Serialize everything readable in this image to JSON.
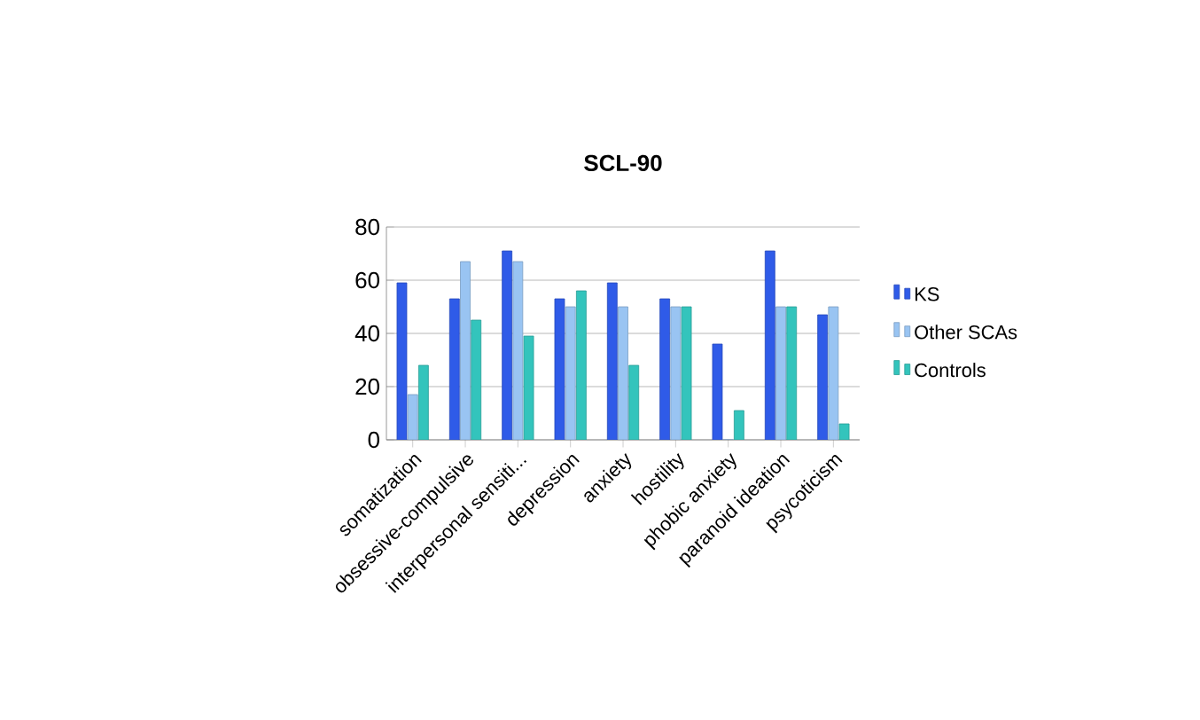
{
  "chart_data": {
    "type": "bar",
    "title": "SCL-90",
    "categories": [
      "somatization",
      "obsessive-compulsive",
      "interpersonal sensiti...",
      "depression",
      "anxiety",
      "hostility",
      "phobic anxiety",
      "paranoid ideation",
      "psycoticism"
    ],
    "series": [
      {
        "name": "KS",
        "color": "#2f5be8",
        "values": [
          59,
          53,
          71,
          53,
          59,
          53,
          36,
          71,
          47
        ]
      },
      {
        "name": "Other SCAs",
        "color": "#99c4f2",
        "values": [
          17,
          67,
          67,
          50,
          50,
          50,
          0,
          50,
          50
        ]
      },
      {
        "name": "Controls",
        "color": "#33c4bc",
        "values": [
          28,
          45,
          39,
          56,
          28,
          50,
          11,
          50,
          6
        ]
      }
    ],
    "ylim": [
      0,
      80
    ],
    "yticks": [
      0,
      20,
      40,
      60,
      80
    ],
    "grid": "y",
    "legend": "right"
  }
}
